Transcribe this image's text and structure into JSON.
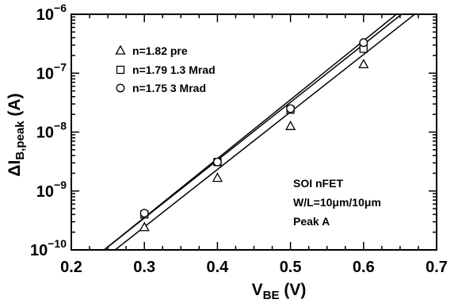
{
  "chart_data": {
    "type": "scatter",
    "title": "",
    "xlabel": {
      "main": "V",
      "sub": "BE",
      "unit": "(V)"
    },
    "ylabel": {
      "main": "ΔI",
      "sub": "B,peak",
      "unit": "(A)"
    },
    "xlim": [
      0.2,
      0.7
    ],
    "ylim": [
      1e-10,
      1e-06
    ],
    "y_scale": "log",
    "x_ticks": [
      "0.2",
      "0.3",
      "0.4",
      "0.5",
      "0.6",
      "0.7"
    ],
    "y_ticks": [
      {
        "value": 1e-10,
        "base": "10",
        "exp": "−10"
      },
      {
        "value": 1e-09,
        "base": "10",
        "exp": "−9"
      },
      {
        "value": 1e-08,
        "base": "10",
        "exp": "−8"
      },
      {
        "value": 1e-07,
        "base": "10",
        "exp": "−7"
      },
      {
        "value": 1e-06,
        "base": "10",
        "exp": "−6"
      }
    ],
    "grid": false,
    "legend_position": "top-left",
    "series": [
      {
        "name": "n=1.82 pre",
        "marker": "triangle",
        "x": [
          0.3,
          0.4,
          0.5,
          0.6
        ],
        "y": [
          2.4e-10,
          1.65e-09,
          1.25e-08,
          1.4e-07
        ],
        "fit": {
          "x": [
            0.26,
            0.67
          ],
          "y": [
            1e-10,
            1e-06
          ]
        }
      },
      {
        "name": "n=1.79 1.3 Mrad",
        "marker": "square",
        "x": [
          0.3,
          0.4,
          0.5,
          0.6
        ],
        "y": [
          4e-10,
          3.1e-09,
          2.4e-08,
          2.6e-07
        ],
        "fit": {
          "x": [
            0.245,
            0.652
          ],
          "y": [
            1e-10,
            1e-06
          ]
        }
      },
      {
        "name": "n=1.75 3 Mrad",
        "marker": "circle",
        "x": [
          0.3,
          0.4,
          0.5,
          0.6
        ],
        "y": [
          4.2e-10,
          3.1e-09,
          2.5e-08,
          3.3e-07
        ],
        "fit": {
          "x": [
            0.245,
            0.645
          ],
          "y": [
            1e-10,
            1e-06
          ]
        }
      }
    ],
    "annotations": [
      "SOI nFET",
      "W/L=10μm/10μm",
      "Peak A"
    ]
  }
}
